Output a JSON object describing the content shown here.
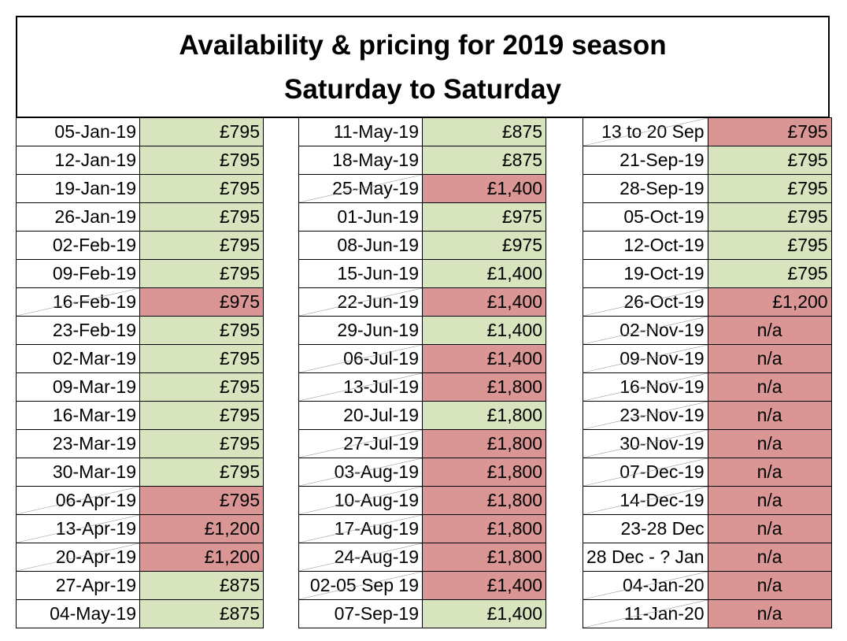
{
  "title": {
    "line1": "Availability & pricing for 2019 season",
    "line2": "Saturday to Saturday"
  },
  "colors": {
    "available": "#d8e4bd",
    "booked": "#d99694"
  },
  "columns": [
    [
      {
        "date": "05-Jan-19",
        "price": "£795",
        "status": "available"
      },
      {
        "date": "12-Jan-19",
        "price": "£795",
        "status": "available"
      },
      {
        "date": "19-Jan-19",
        "price": "£795",
        "status": "available"
      },
      {
        "date": "26-Jan-19",
        "price": "£795",
        "status": "available"
      },
      {
        "date": "02-Feb-19",
        "price": "£795",
        "status": "available"
      },
      {
        "date": "09-Feb-19",
        "price": "£795",
        "status": "available"
      },
      {
        "date": "16-Feb-19",
        "price": "£975",
        "status": "booked"
      },
      {
        "date": "23-Feb-19",
        "price": "£795",
        "status": "available"
      },
      {
        "date": "02-Mar-19",
        "price": "£795",
        "status": "available"
      },
      {
        "date": "09-Mar-19",
        "price": "£795",
        "status": "available"
      },
      {
        "date": "16-Mar-19",
        "price": "£795",
        "status": "available"
      },
      {
        "date": "23-Mar-19",
        "price": "£795",
        "status": "available"
      },
      {
        "date": "30-Mar-19",
        "price": "£795",
        "status": "available"
      },
      {
        "date": "06-Apr-19",
        "price": "£795",
        "status": "booked"
      },
      {
        "date": "13-Apr-19",
        "price": "£1,200",
        "status": "booked"
      },
      {
        "date": "20-Apr-19",
        "price": "£1,200",
        "status": "booked"
      },
      {
        "date": "27-Apr-19",
        "price": "£875",
        "status": "available"
      },
      {
        "date": "04-May-19",
        "price": "£875",
        "status": "available"
      }
    ],
    [
      {
        "date": "11-May-19",
        "price": "£875",
        "status": "available"
      },
      {
        "date": "18-May-19",
        "price": "£875",
        "status": "available"
      },
      {
        "date": "25-May-19",
        "price": "£1,400",
        "status": "booked"
      },
      {
        "date": "01-Jun-19",
        "price": "£975",
        "status": "available"
      },
      {
        "date": "08-Jun-19",
        "price": "£975",
        "status": "available"
      },
      {
        "date": "15-Jun-19",
        "price": "£1,400",
        "status": "available"
      },
      {
        "date": "22-Jun-19",
        "price": "£1,400",
        "status": "booked"
      },
      {
        "date": "29-Jun-19",
        "price": "£1,400",
        "status": "available"
      },
      {
        "date": "06-Jul-19",
        "price": "£1,400",
        "status": "booked"
      },
      {
        "date": "13-Jul-19",
        "price": "£1,800",
        "status": "booked"
      },
      {
        "date": "20-Jul-19",
        "price": "£1,800",
        "status": "available"
      },
      {
        "date": "27-Jul-19",
        "price": "£1,800",
        "status": "booked"
      },
      {
        "date": "03-Aug-19",
        "price": "£1,800",
        "status": "booked"
      },
      {
        "date": "10-Aug-19",
        "price": "£1,800",
        "status": "booked"
      },
      {
        "date": "17-Aug-19",
        "price": "£1,800",
        "status": "booked"
      },
      {
        "date": "24-Aug-19",
        "price": "£1,800",
        "status": "booked"
      },
      {
        "date": "02-05 Sep 19",
        "price": "£1,400",
        "status": "booked"
      },
      {
        "date": "07-Sep-19",
        "price": "£1,400",
        "status": "available"
      }
    ],
    [
      {
        "date": "13 to 20 Sep",
        "price": "£795",
        "status": "booked"
      },
      {
        "date": "21-Sep-19",
        "price": "£795",
        "status": "available"
      },
      {
        "date": "28-Sep-19",
        "price": "£795",
        "status": "available"
      },
      {
        "date": "05-Oct-19",
        "price": "£795",
        "status": "available"
      },
      {
        "date": "12-Oct-19",
        "price": "£795",
        "status": "available"
      },
      {
        "date": "19-Oct-19",
        "price": "£795",
        "status": "available"
      },
      {
        "date": "26-Oct-19",
        "price": "£1,200",
        "status": "booked"
      },
      {
        "date": "02-Nov-19",
        "price": "n/a",
        "status": "booked"
      },
      {
        "date": "09-Nov-19",
        "price": "n/a",
        "status": "booked"
      },
      {
        "date": "16-Nov-19",
        "price": "n/a",
        "status": "booked"
      },
      {
        "date": "23-Nov-19",
        "price": "n/a",
        "status": "booked"
      },
      {
        "date": "30-Nov-19",
        "price": "n/a",
        "status": "booked"
      },
      {
        "date": "07-Dec-19",
        "price": "n/a",
        "status": "booked"
      },
      {
        "date": "14-Dec-19",
        "price": "n/a",
        "status": "booked"
      },
      {
        "date": "23-28 Dec",
        "price": "n/a",
        "status": "booked"
      },
      {
        "date": "28 Dec - ? Jan",
        "price": "n/a",
        "status": "booked"
      },
      {
        "date": "04-Jan-20",
        "price": "n/a",
        "status": "booked"
      },
      {
        "date": "11-Jan-20",
        "price": "n/a",
        "status": "booked"
      }
    ]
  ]
}
